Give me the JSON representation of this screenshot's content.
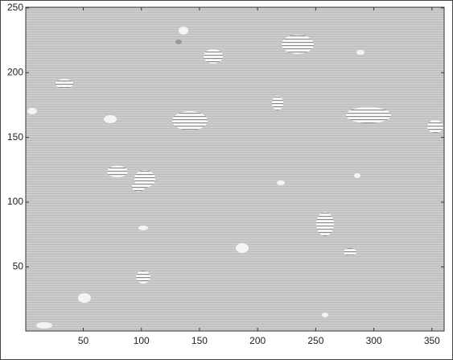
{
  "chart_data": {
    "type": "image",
    "xlim": [
      0.5,
      360.5
    ],
    "xticks": [
      50,
      100,
      150,
      200,
      250,
      300,
      350
    ],
    "ylim": [
      0.5,
      250.5
    ],
    "yticks": [
      50,
      100,
      150,
      200,
      250
    ]
  }
}
